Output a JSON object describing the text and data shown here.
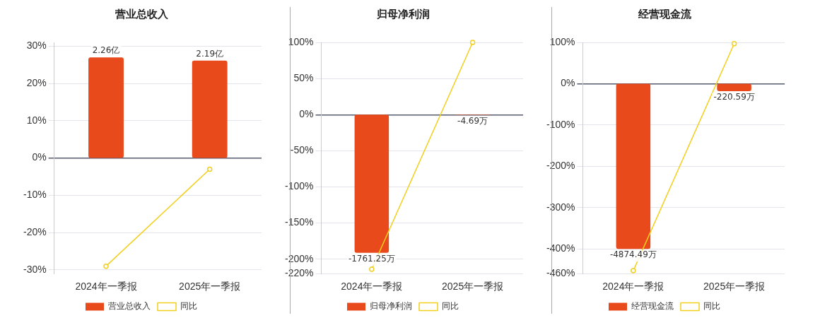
{
  "chart_data": [
    {
      "type": "bar",
      "title": "营业总收入",
      "categories": [
        "2024年一季报",
        "2025年一季报"
      ],
      "series": [
        {
          "name": "营业总收入",
          "axis": "y2",
          "color": "#e84a1c",
          "values": [
            2.26,
            2.19
          ],
          "value_labels": [
            "2.26亿",
            "2.19亿"
          ]
        },
        {
          "name": "同比",
          "type": "line",
          "color": "#f2cf1d",
          "marker": "circle",
          "values": [
            -29,
            -3
          ]
        }
      ],
      "ylim": [
        -31,
        31
      ],
      "yticks": [
        {
          "value": -30,
          "label": "-30%"
        },
        {
          "value": -20,
          "label": "-20%"
        },
        {
          "value": -10,
          "label": "-10%"
        },
        {
          "value": 0,
          "label": "0%"
        },
        {
          "value": 10,
          "label": "10%"
        },
        {
          "value": 20,
          "label": "20%"
        },
        {
          "value": 30,
          "label": "30%"
        }
      ],
      "grid": "y",
      "legend": "bottom"
    },
    {
      "type": "bar",
      "title": "归母净利润",
      "categories": [
        "2024年一季报",
        "2025年一季报"
      ],
      "series": [
        {
          "name": "归母净利润",
          "axis": "y2",
          "color": "#e84a1c",
          "values": [
            -1761.25,
            -4.69
          ],
          "value_labels": [
            "-1761.25万",
            "-4.69万"
          ]
        },
        {
          "name": "同比",
          "type": "line",
          "color": "#f2cf1d",
          "marker": "circle",
          "values": [
            -214,
            100
          ]
        }
      ],
      "ylim": [
        -220,
        100
      ],
      "yticks": [
        {
          "value": -220,
          "label": "-220%"
        },
        {
          "value": -200,
          "label": "-200%"
        },
        {
          "value": -150,
          "label": "-150%"
        },
        {
          "value": -100,
          "label": "-100%"
        },
        {
          "value": -50,
          "label": "-50%"
        },
        {
          "value": 0,
          "label": "0%"
        },
        {
          "value": 50,
          "label": "50%"
        },
        {
          "value": 100,
          "label": "100%"
        }
      ],
      "grid": "y",
      "legend": "bottom"
    },
    {
      "type": "bar",
      "title": "经营现金流",
      "categories": [
        "2024年一季报",
        "2025年一季报"
      ],
      "series": [
        {
          "name": "经营现金流",
          "axis": "y2",
          "color": "#e84a1c",
          "values": [
            -4874.49,
            -220.59
          ],
          "value_labels": [
            "-4874.49万",
            "-220.59万"
          ]
        },
        {
          "name": "同比",
          "type": "line",
          "color": "#f2cf1d",
          "marker": "circle",
          "values": [
            -453,
            97
          ]
        }
      ],
      "ylim": [
        -460,
        100
      ],
      "yticks": [
        {
          "value": -460,
          "label": "-460%"
        },
        {
          "value": -400,
          "label": "-400%"
        },
        {
          "value": -300,
          "label": "-300%"
        },
        {
          "value": -200,
          "label": "-200%"
        },
        {
          "value": -100,
          "label": "-100%"
        },
        {
          "value": 0,
          "label": "0%"
        },
        {
          "value": 100,
          "label": "100%"
        }
      ],
      "grid": "y",
      "legend": "bottom"
    }
  ]
}
